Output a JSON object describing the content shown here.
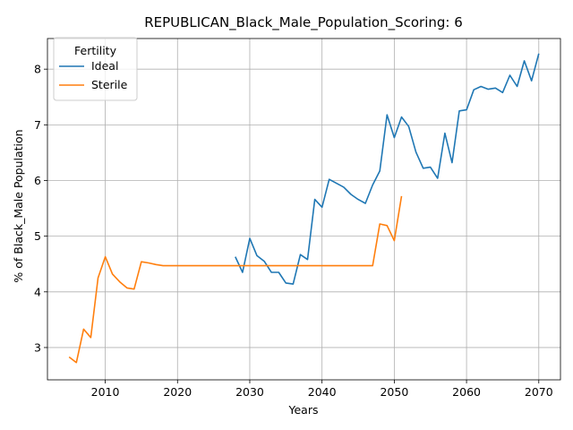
{
  "chart_data": {
    "type": "line",
    "title": "REPUBLICAN_Black_Male_Population_Scoring: 6",
    "xlabel": "Years",
    "ylabel": "% of Black_Male Population",
    "xlim": [
      2002,
      2073
    ],
    "ylim": [
      2.42,
      8.55
    ],
    "xticks": [
      2010,
      2020,
      2030,
      2040,
      2050,
      2060,
      2070
    ],
    "yticks": [
      3,
      4,
      5,
      6,
      7,
      8
    ],
    "grid": true,
    "legend": {
      "title": "Fertility",
      "placement": "top-left"
    },
    "series": [
      {
        "name": "Ideal",
        "color": "#1f77b4",
        "x": [
          2028,
          2029,
          2030,
          2031,
          2032,
          2033,
          2034,
          2035,
          2036,
          2037,
          2038,
          2039,
          2040,
          2041,
          2042,
          2043,
          2044,
          2045,
          2046,
          2047,
          2048,
          2049,
          2050,
          2051,
          2052,
          2053,
          2054,
          2055,
          2056,
          2057,
          2058,
          2059,
          2060,
          2061,
          2062,
          2063,
          2064,
          2065,
          2066,
          2067,
          2068,
          2069,
          2070
        ],
        "y": [
          4.63,
          4.35,
          4.96,
          4.65,
          4.55,
          4.35,
          4.35,
          4.16,
          4.14,
          4.67,
          4.58,
          5.66,
          5.52,
          6.02,
          5.95,
          5.88,
          5.75,
          5.66,
          5.59,
          5.92,
          6.17,
          7.18,
          6.77,
          7.14,
          6.97,
          6.51,
          6.22,
          6.24,
          6.04,
          6.85,
          6.32,
          7.25,
          7.27,
          7.63,
          7.69,
          7.64,
          7.66,
          7.58,
          7.89,
          7.69,
          8.15,
          7.79,
          8.28
        ]
      },
      {
        "name": "Sterile",
        "color": "#ff7f0e",
        "x": [
          2005,
          2006,
          2007,
          2008,
          2009,
          2010,
          2011,
          2012,
          2013,
          2014,
          2015,
          2016,
          2017,
          2018,
          2019,
          2020,
          2021,
          2022,
          2023,
          2024,
          2025,
          2026,
          2027,
          2028,
          2029,
          2030,
          2031,
          2032,
          2033,
          2034,
          2035,
          2036,
          2037,
          2038,
          2039,
          2040,
          2041,
          2042,
          2043,
          2044,
          2045,
          2046,
          2047,
          2048,
          2049,
          2050,
          2051
        ],
        "y": [
          2.83,
          2.73,
          3.33,
          3.18,
          4.25,
          4.63,
          4.32,
          4.18,
          4.07,
          4.05,
          4.54,
          4.52,
          4.49,
          4.47,
          4.47,
          4.47,
          4.47,
          4.47,
          4.47,
          4.47,
          4.47,
          4.47,
          4.47,
          4.47,
          4.47,
          4.47,
          4.47,
          4.47,
          4.47,
          4.47,
          4.47,
          4.47,
          4.47,
          4.47,
          4.47,
          4.47,
          4.47,
          4.47,
          4.47,
          4.47,
          4.47,
          4.47,
          4.47,
          5.22,
          5.19,
          4.92,
          5.72
        ]
      }
    ]
  }
}
